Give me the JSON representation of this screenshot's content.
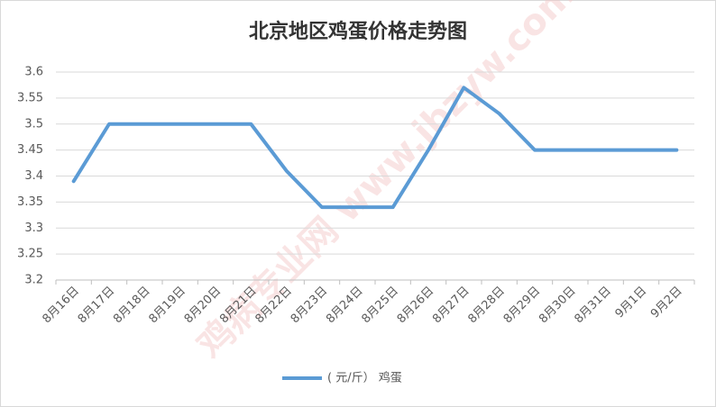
{
  "chart_data": {
    "type": "line",
    "title": "北京地区鸡蛋价格走势图",
    "watermark": "鸡病专业网 www.jbzyw.com",
    "categories": [
      "8月16日",
      "8月17日",
      "8月18日",
      "8月19日",
      "8月20日",
      "8月21日",
      "8月22日",
      "8月23日",
      "8月24日",
      "8月25日",
      "8月26日",
      "8月27日",
      "8月28日",
      "8月29日",
      "8月30日",
      "8月31日",
      "9月1日",
      "9月2日"
    ],
    "series": [
      {
        "name": "( 元/斤） 鸡蛋",
        "color": "#5b9bd5",
        "values": [
          3.39,
          3.5,
          3.5,
          3.5,
          3.5,
          3.5,
          3.41,
          3.34,
          3.34,
          3.34,
          3.45,
          3.57,
          3.52,
          3.45,
          3.45,
          3.45,
          3.45,
          3.45
        ]
      }
    ],
    "ylim": [
      3.2,
      3.6
    ],
    "yticks": [
      3.2,
      3.25,
      3.3,
      3.35,
      3.4,
      3.45,
      3.5,
      3.55,
      3.6
    ],
    "grid": true,
    "legend": "bottom"
  }
}
